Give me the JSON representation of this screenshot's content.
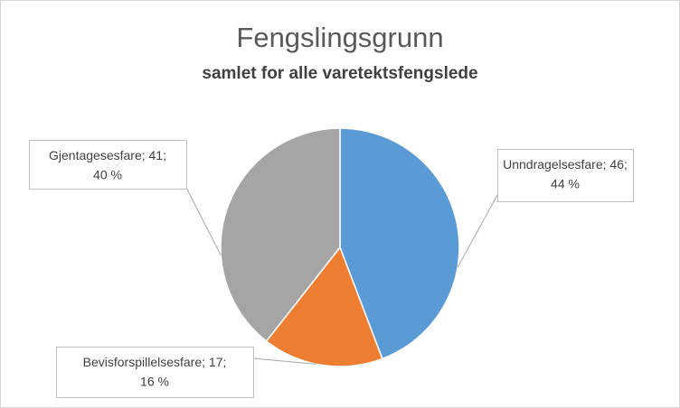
{
  "chart_data": {
    "type": "pie",
    "title": "Fengslingsgrunn",
    "subtitle": "samlet for alle varetektsfengslede",
    "categories": [
      "Unndragelsesfare",
      "Bevisforspillelsesfare",
      "Gjentagesesfare"
    ],
    "values": [
      46,
      17,
      41
    ],
    "value_labels": [
      "; 46;",
      "; 17;",
      "; 41;"
    ],
    "percents": [
      44,
      16,
      40
    ],
    "percent_labels": [
      "44 %",
      "16 %",
      "40 %"
    ],
    "colors": [
      "#5b9bd5",
      "#ed7d31",
      "#a5a5a5"
    ]
  }
}
